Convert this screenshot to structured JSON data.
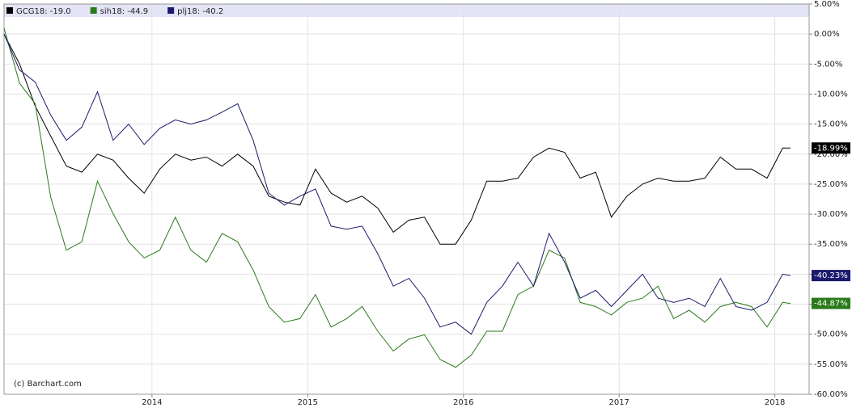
{
  "chart_data": {
    "type": "line",
    "credit": "(c) Barchart.com",
    "legend": "top-left",
    "grid": true,
    "x": [
      2013.05,
      2013.15,
      2013.25,
      2013.35,
      2013.45,
      2013.55,
      2013.65,
      2013.75,
      2013.85,
      2013.95,
      2014.05,
      2014.15,
      2014.25,
      2014.35,
      2014.45,
      2014.55,
      2014.65,
      2014.75,
      2014.85,
      2014.95,
      2015.05,
      2015.15,
      2015.25,
      2015.35,
      2015.45,
      2015.55,
      2015.65,
      2015.75,
      2015.85,
      2015.95,
      2016.05,
      2016.15,
      2016.25,
      2016.35,
      2016.45,
      2016.55,
      2016.65,
      2016.75,
      2016.85,
      2016.95,
      2017.05,
      2017.15,
      2017.25,
      2017.35,
      2017.45,
      2017.55,
      2017.65,
      2017.75,
      2017.85,
      2017.95,
      2018.05,
      2018.1
    ],
    "xlim": [
      2013.05,
      2018.22
    ],
    "xticks": [
      2014,
      2015,
      2016,
      2017,
      2018
    ],
    "ylim": [
      -60,
      5
    ],
    "yticks": [
      {
        "value": 5,
        "label": "5.00%"
      },
      {
        "value": 0,
        "label": "0.00%"
      },
      {
        "value": -5,
        "label": "-5.00%"
      },
      {
        "value": -10,
        "label": "-10.00%"
      },
      {
        "value": -15,
        "label": "-15.00%"
      },
      {
        "value": -20,
        "label": "-20.00%"
      },
      {
        "value": -25,
        "label": "-25.00%"
      },
      {
        "value": -30,
        "label": "-30.00%"
      },
      {
        "value": -35,
        "label": "-35.00%"
      },
      {
        "value": -40,
        "label": "-40.00%"
      },
      {
        "value": -45,
        "label": "-45.00%"
      },
      {
        "value": -50,
        "label": "-50.00%"
      },
      {
        "value": -55,
        "label": "-55.00%"
      },
      {
        "value": -60,
        "label": "-60.00%"
      }
    ],
    "series": [
      {
        "name": "GCG18: -19.0",
        "color": "#000000",
        "end_label": {
          "value": -18.99,
          "label": "-18.99%"
        },
        "values": [
          0,
          -5,
          -12,
          -17,
          -22,
          -23,
          -20,
          -21,
          -24,
          -26.5,
          -22.5,
          -20,
          -21,
          -20.5,
          -22,
          -20,
          -22,
          -27,
          -28,
          -28.5,
          -22.5,
          -26.5,
          -28,
          -27,
          -29,
          -33,
          -31,
          -30.5,
          -35,
          -35,
          -31,
          -24.5,
          -24.5,
          -24,
          -20.5,
          -19,
          -19.7,
          -24,
          -23,
          -30.5,
          -27,
          -25,
          -24,
          -24.5,
          -24.5,
          -24,
          -20.5,
          -22.5,
          -22.5,
          -24,
          -19,
          -18.99
        ]
      },
      {
        "name": "sih18: -44.9",
        "color": "#2a7a1a",
        "end_label": {
          "value": -44.87,
          "label": "-44.87%"
        },
        "values": [
          1,
          -8.2,
          -11.6,
          -27.2,
          -36,
          -34.6,
          -24.5,
          -29.9,
          -34.6,
          -37.3,
          -36,
          -30.5,
          -36,
          -38,
          -33.2,
          -34.6,
          -39.3,
          -45.4,
          -48,
          -47.4,
          -43.4,
          -48.8,
          -47.4,
          -45.4,
          -49.5,
          -52.8,
          -50.8,
          -50.1,
          -54.2,
          -55.5,
          -53.5,
          -49.5,
          -49.5,
          -43.4,
          -42,
          -36,
          -37.3,
          -44.7,
          -45.4,
          -46.8,
          -44.7,
          -44,
          -42,
          -47.4,
          -46,
          -48,
          -45.4,
          -44.7,
          -45.4,
          -48.8,
          -44.7,
          -44.87
        ]
      },
      {
        "name": "plj18: -40.2",
        "color": "#1a1a6e",
        "end_label": {
          "value": -40.23,
          "label": "-40.23%"
        },
        "values": [
          0,
          -6,
          -8,
          -13.5,
          -17.7,
          -15.5,
          -9.6,
          -17.7,
          -15,
          -18.4,
          -15.7,
          -14.3,
          -15,
          -14.3,
          -13,
          -11.6,
          -17.7,
          -26.5,
          -28.5,
          -27,
          -25.8,
          -32,
          -32.5,
          -32,
          -36.6,
          -42,
          -40.7,
          -44,
          -48.8,
          -48,
          -50,
          -44.7,
          -42,
          -38,
          -42,
          -33.2,
          -38,
          -44,
          -42.7,
          -45.4,
          -42.7,
          -40,
          -44,
          -44.7,
          -44,
          -45.4,
          -40.7,
          -45.4,
          -46,
          -44.7,
          -40,
          -40.23
        ]
      }
    ]
  }
}
